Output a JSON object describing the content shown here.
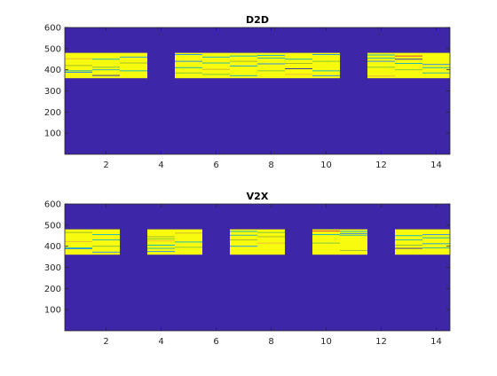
{
  "chart_data": [
    {
      "type": "heatmap",
      "title": "D2D",
      "xlabel": "",
      "ylabel": "",
      "xlim": [
        0.5,
        14.5
      ],
      "ylim": [
        0,
        600
      ],
      "xticks": [
        2,
        4,
        6,
        8,
        10,
        12,
        14
      ],
      "yticks": [
        100,
        200,
        300,
        400,
        500,
        600
      ],
      "background_color": "#3e26a8",
      "active_color": "#f9fb0e",
      "active_band": [
        360,
        480
      ],
      "active_columns": [
        1,
        2,
        3,
        5,
        6,
        7,
        8,
        9,
        10,
        12,
        13,
        14
      ],
      "stripes": [
        {
          "col": 1,
          "y": 395,
          "c": "#1fb8b1"
        },
        {
          "col": 1,
          "y": 388,
          "c": "#3a8ee0"
        },
        {
          "col": 1,
          "y": 420,
          "c": "#a5be2a"
        },
        {
          "col": 1,
          "y": 452,
          "c": "#ecbb3a"
        },
        {
          "col": 2,
          "y": 450,
          "c": "#1fb8b1"
        },
        {
          "col": 2,
          "y": 400,
          "c": "#33b7a0"
        },
        {
          "col": 2,
          "y": 373,
          "c": "#3e3aa8"
        },
        {
          "col": 2,
          "y": 412,
          "c": "#86c53e"
        },
        {
          "col": 3,
          "y": 460,
          "c": "#2ca4d0"
        },
        {
          "col": 3,
          "y": 395,
          "c": "#1fb8b1"
        },
        {
          "col": 3,
          "y": 432,
          "c": "#a5be2a"
        },
        {
          "col": 5,
          "y": 410,
          "c": "#1fb8b1"
        },
        {
          "col": 5,
          "y": 440,
          "c": "#3a8ee0"
        },
        {
          "col": 5,
          "y": 472,
          "c": "#2ca4d0"
        },
        {
          "col": 5,
          "y": 385,
          "c": "#86c53e"
        },
        {
          "col": 6,
          "y": 460,
          "c": "#1fb8b1"
        },
        {
          "col": 6,
          "y": 432,
          "c": "#33b7a0"
        },
        {
          "col": 6,
          "y": 402,
          "c": "#d1bb2e"
        },
        {
          "col": 6,
          "y": 378,
          "c": "#86c53e"
        },
        {
          "col": 7,
          "y": 465,
          "c": "#1fb8b1"
        },
        {
          "col": 7,
          "y": 440,
          "c": "#a5be2a"
        },
        {
          "col": 7,
          "y": 372,
          "c": "#33b7a0"
        },
        {
          "col": 7,
          "y": 418,
          "c": "#2ca4d0"
        },
        {
          "col": 8,
          "y": 468,
          "c": "#1fb8b1"
        },
        {
          "col": 8,
          "y": 455,
          "c": "#33b7a0"
        },
        {
          "col": 8,
          "y": 428,
          "c": "#3a8ee0"
        },
        {
          "col": 8,
          "y": 395,
          "c": "#86c53e"
        },
        {
          "col": 9,
          "y": 450,
          "c": "#1fb8b1"
        },
        {
          "col": 9,
          "y": 405,
          "c": "#3e3aa8"
        },
        {
          "col": 9,
          "y": 430,
          "c": "#a5be2a"
        },
        {
          "col": 9,
          "y": 378,
          "c": "#ecbb3a"
        },
        {
          "col": 10,
          "y": 472,
          "c": "#2ca4d0"
        },
        {
          "col": 10,
          "y": 395,
          "c": "#1fb8b1"
        },
        {
          "col": 10,
          "y": 372,
          "c": "#3a8ee0"
        },
        {
          "col": 10,
          "y": 440,
          "c": "#86c53e"
        },
        {
          "col": 12,
          "y": 470,
          "c": "#1fb8b1"
        },
        {
          "col": 12,
          "y": 455,
          "c": "#33b7a0"
        },
        {
          "col": 12,
          "y": 440,
          "c": "#3a8ee0"
        },
        {
          "col": 12,
          "y": 412,
          "c": "#86c53e"
        },
        {
          "col": 12,
          "y": 370,
          "c": "#ecbb3a"
        },
        {
          "col": 13,
          "y": 465,
          "c": "#e0443a"
        },
        {
          "col": 13,
          "y": 450,
          "c": "#3e3aa8"
        },
        {
          "col": 13,
          "y": 430,
          "c": "#1fb8b1"
        },
        {
          "col": 13,
          "y": 400,
          "c": "#86c53e"
        },
        {
          "col": 14,
          "y": 425,
          "c": "#3a8ee0"
        },
        {
          "col": 14,
          "y": 410,
          "c": "#1fb8b1"
        },
        {
          "col": 14,
          "y": 385,
          "c": "#33b7a0"
        }
      ]
    },
    {
      "type": "heatmap",
      "title": "V2X",
      "xlabel": "",
      "ylabel": "",
      "xlim": [
        0.5,
        14.5
      ],
      "ylim": [
        0,
        600
      ],
      "xticks": [
        2,
        4,
        6,
        8,
        10,
        12,
        14
      ],
      "yticks": [
        100,
        200,
        300,
        400,
        500,
        600
      ],
      "background_color": "#3e26a8",
      "active_color": "#f9fb0e",
      "active_band": [
        360,
        480
      ],
      "active_columns": [
        1,
        2,
        4,
        5,
        7,
        8,
        10,
        11,
        13,
        14
      ],
      "stripes": [
        {
          "col": 1,
          "y": 392,
          "c": "#1fb8b1"
        },
        {
          "col": 1,
          "y": 388,
          "c": "#3a8ee0"
        },
        {
          "col": 1,
          "y": 465,
          "c": "#a5be2a"
        },
        {
          "col": 1,
          "y": 422,
          "c": "#ecbb3a"
        },
        {
          "col": 2,
          "y": 455,
          "c": "#1fb8b1"
        },
        {
          "col": 2,
          "y": 430,
          "c": "#33b7a0"
        },
        {
          "col": 2,
          "y": 372,
          "c": "#3a8ee0"
        },
        {
          "col": 2,
          "y": 400,
          "c": "#86c53e"
        },
        {
          "col": 4,
          "y": 445,
          "c": "#a5be2a"
        },
        {
          "col": 4,
          "y": 435,
          "c": "#86c53e"
        },
        {
          "col": 4,
          "y": 425,
          "c": "#ecbb3a"
        },
        {
          "col": 4,
          "y": 405,
          "c": "#1fb8b1"
        },
        {
          "col": 4,
          "y": 390,
          "c": "#33b7a0"
        },
        {
          "col": 4,
          "y": 375,
          "c": "#3a8ee0"
        },
        {
          "col": 5,
          "y": 462,
          "c": "#d1bb2e"
        },
        {
          "col": 5,
          "y": 420,
          "c": "#1fb8b1"
        },
        {
          "col": 5,
          "y": 395,
          "c": "#86c53e"
        },
        {
          "col": 7,
          "y": 470,
          "c": "#1fb8b1"
        },
        {
          "col": 7,
          "y": 452,
          "c": "#33b7a0"
        },
        {
          "col": 7,
          "y": 430,
          "c": "#a5be2a"
        },
        {
          "col": 7,
          "y": 400,
          "c": "#2ca4d0"
        },
        {
          "col": 8,
          "y": 465,
          "c": "#86c53e"
        },
        {
          "col": 8,
          "y": 445,
          "c": "#a5be2a"
        },
        {
          "col": 8,
          "y": 415,
          "c": "#ecbb3a"
        },
        {
          "col": 10,
          "y": 472,
          "c": "#e0443a"
        },
        {
          "col": 10,
          "y": 455,
          "c": "#1fb8b1"
        },
        {
          "col": 10,
          "y": 415,
          "c": "#86c53e"
        },
        {
          "col": 11,
          "y": 470,
          "c": "#1fb8b1"
        },
        {
          "col": 11,
          "y": 460,
          "c": "#3a8ee0"
        },
        {
          "col": 11,
          "y": 452,
          "c": "#33b7a0"
        },
        {
          "col": 11,
          "y": 380,
          "c": "#a5be2a"
        },
        {
          "col": 13,
          "y": 450,
          "c": "#1fb8b1"
        },
        {
          "col": 13,
          "y": 430,
          "c": "#33b7a0"
        },
        {
          "col": 13,
          "y": 405,
          "c": "#86c53e"
        },
        {
          "col": 13,
          "y": 390,
          "c": "#3e3aa8"
        },
        {
          "col": 14,
          "y": 455,
          "c": "#3a8ee0"
        },
        {
          "col": 14,
          "y": 440,
          "c": "#1fb8b1"
        },
        {
          "col": 14,
          "y": 412,
          "c": "#2ca4d0"
        },
        {
          "col": 14,
          "y": 392,
          "c": "#33b7a0"
        }
      ]
    }
  ]
}
